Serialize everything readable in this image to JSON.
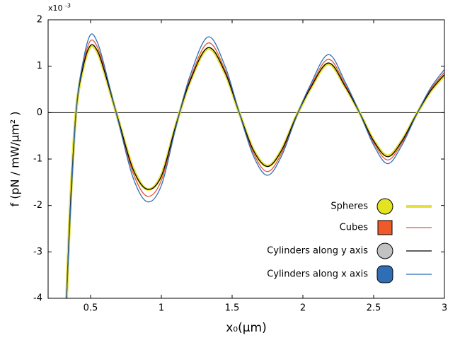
{
  "chart_data": {
    "type": "line",
    "ylabel": "f (pN / mW/μm² )",
    "xlabel": "x₀(μm)",
    "y_multiplier": {
      "base": "x10",
      "exponent": "-3"
    },
    "x": [
      0.33,
      0.36,
      0.4,
      0.45,
      0.5,
      0.55,
      0.6,
      0.7,
      0.8,
      0.9,
      1.0,
      1.1,
      1.2,
      1.33,
      1.45,
      1.55,
      1.65,
      1.75,
      1.85,
      1.95,
      2.05,
      2.18,
      2.3,
      2.4,
      2.5,
      2.6,
      2.7,
      2.8,
      2.9,
      3.0
    ],
    "series": [
      {
        "name": "Spheres",
        "color": "#e8e03a",
        "width": 4,
        "values": [
          -4,
          -1.8,
          0.1,
          1.0,
          1.42,
          1.3,
          0.85,
          -0.2,
          -1.2,
          -1.65,
          -1.35,
          -0.3,
          0.65,
          1.38,
          0.85,
          0.0,
          -0.8,
          -1.15,
          -0.8,
          -0.1,
          0.5,
          1.05,
          0.55,
          0.0,
          -0.6,
          -0.93,
          -0.6,
          -0.05,
          0.45,
          0.8
        ]
      },
      {
        "name": "Cubes",
        "color": "#e8533a",
        "width": 1.3,
        "values": [
          -4,
          -1.9,
          0.1,
          1.08,
          1.55,
          1.4,
          0.92,
          -0.22,
          -1.3,
          -1.8,
          -1.46,
          -0.32,
          0.7,
          1.5,
          0.92,
          0.0,
          -0.87,
          -1.27,
          -0.87,
          -0.11,
          0.54,
          1.15,
          0.6,
          0.0,
          -0.65,
          -1.02,
          -0.65,
          -0.05,
          0.49,
          0.87
        ]
      },
      {
        "name": "Cylinders along y axis",
        "color": "#000000",
        "width": 1.3,
        "values": [
          -4,
          -1.85,
          0.1,
          1.02,
          1.45,
          1.32,
          0.87,
          -0.2,
          -1.22,
          -1.65,
          -1.37,
          -0.3,
          0.66,
          1.4,
          0.87,
          0.0,
          -0.81,
          -1.16,
          -0.81,
          -0.1,
          0.51,
          1.07,
          0.56,
          0.0,
          -0.61,
          -0.95,
          -0.61,
          -0.05,
          0.46,
          0.82
        ]
      },
      {
        "name": "Cylinders along x axis",
        "color": "#2f6db5",
        "width": 1.3,
        "values": [
          -4,
          -2.0,
          0.1,
          1.15,
          1.68,
          1.5,
          0.98,
          -0.24,
          -1.4,
          -1.92,
          -1.57,
          -0.35,
          0.77,
          1.63,
          1.0,
          0.0,
          -0.93,
          -1.35,
          -0.93,
          -0.12,
          0.58,
          1.25,
          0.65,
          0.0,
          -0.7,
          -1.1,
          -0.7,
          -0.06,
          0.52,
          0.93
        ]
      }
    ],
    "xlim": [
      0.2,
      3
    ],
    "ylim": [
      -4,
      2
    ],
    "xticks": [
      0.5,
      1,
      1.5,
      2,
      2.5,
      3
    ],
    "yticks": [
      -4,
      -3,
      -2,
      -1,
      0,
      1,
      2
    ],
    "grid": false,
    "zero_line": true,
    "legend": "lower right"
  }
}
